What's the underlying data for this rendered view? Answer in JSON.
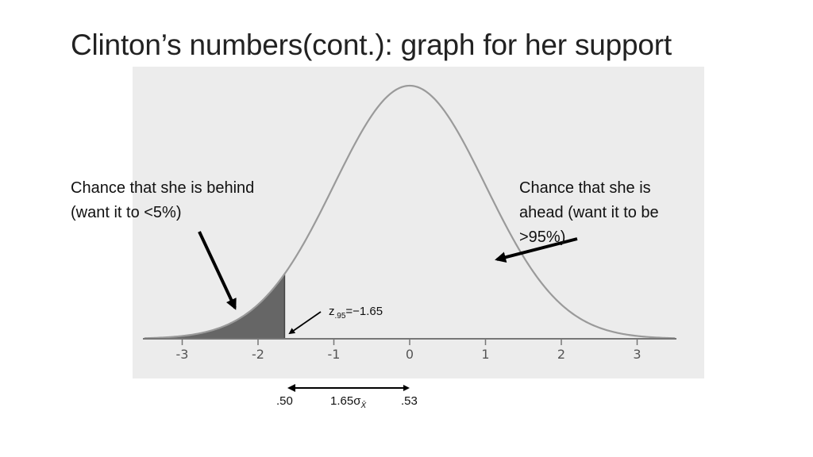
{
  "slide": {
    "title": "Clinton’s numbers(cont.): graph for her support"
  },
  "annotations": {
    "left_line1": "Chance that she is behind",
    "left_line2": "(want it to <5%)",
    "right_line1": "Chance that she is",
    "right_line2": "ahead (want it to be",
    "right_line3": ">95%)"
  },
  "critical_value": {
    "z": "z",
    "subscript": ".95",
    "value": "=−1.65"
  },
  "bottom_axis": {
    "left_value": ".50",
    "middle_prefix": "1.65σ",
    "middle_subscript": "X̄",
    "right_value": ".53"
  },
  "chart_data": {
    "type": "area",
    "distribution": "standard normal",
    "mean": 0,
    "sd": 1,
    "xlim": [
      -3.5,
      3.5
    ],
    "ticks": [
      -3,
      -2,
      -1,
      0,
      1,
      2,
      3
    ],
    "tick_labels": [
      "-3",
      "-2",
      "-1",
      "0",
      "1",
      "2",
      "3"
    ],
    "shaded_region": {
      "from": -3.5,
      "to": -1.65,
      "color": "#666666"
    },
    "curve_color": "#9a9a9a",
    "panel_color": "#ececec",
    "title": "",
    "xlabel": "",
    "ylabel": ""
  }
}
